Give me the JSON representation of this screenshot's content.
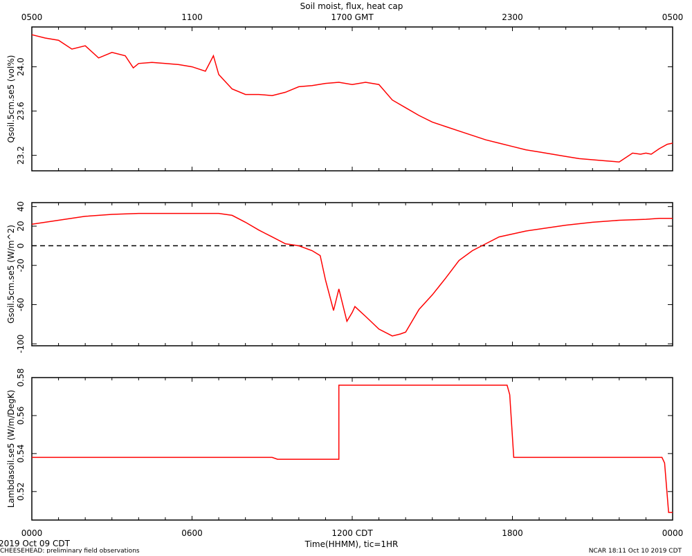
{
  "chart_data": {
    "title": "Soil moist, flux, heat cap",
    "top_axis_labels": [
      "0500",
      "1100",
      "1700 GMT",
      "2300",
      "0500"
    ],
    "bottom_axis_labels": [
      "0000",
      "0600",
      "1200 CDT",
      "1800",
      "0000"
    ],
    "xlabel": "Time(HHMM), tic=1HR",
    "date_label": "2019 Oct 09 CDT",
    "footer_left": "CHEESEHEAD: preliminary field observations",
    "footer_right": "NCAR 18:11 Oct 10 2019 CDT",
    "series_color": "#ff0000",
    "panels": [
      {
        "type": "line",
        "ylabel": "Qsoil.5cm.se5 (vol%)",
        "ylim": [
          23.06,
          24.36
        ],
        "yticks": [
          23.2,
          23.6,
          24.0
        ],
        "ytick_labels": [
          "23.2",
          "23.6",
          "24.0"
        ],
        "x": [
          0,
          0.5,
          1.0,
          1.5,
          2.0,
          2.5,
          3.0,
          3.5,
          3.8,
          4.0,
          4.5,
          5.0,
          5.5,
          6.0,
          6.5,
          6.8,
          7.0,
          7.5,
          8.0,
          8.5,
          9.0,
          9.5,
          10.0,
          10.5,
          11.0,
          11.5,
          12.0,
          12.5,
          13.0,
          13.5,
          14.0,
          14.5,
          15.0,
          15.5,
          16.0,
          16.5,
          17.0,
          17.5,
          18.0,
          18.5,
          19.0,
          19.5,
          20.0,
          20.5,
          21.0,
          21.5,
          22.0,
          22.5,
          22.8,
          23.0,
          23.2,
          23.5,
          23.8,
          24.0
        ],
        "y": [
          24.29,
          24.26,
          24.24,
          24.16,
          24.19,
          24.08,
          24.13,
          24.1,
          23.99,
          24.03,
          24.04,
          24.03,
          24.02,
          24.0,
          23.96,
          24.1,
          23.93,
          23.8,
          23.75,
          23.75,
          23.74,
          23.77,
          23.82,
          23.83,
          23.85,
          23.86,
          23.84,
          23.86,
          23.84,
          23.7,
          23.63,
          23.56,
          23.5,
          23.46,
          23.42,
          23.38,
          23.34,
          23.31,
          23.28,
          23.25,
          23.23,
          23.21,
          23.19,
          23.17,
          23.16,
          23.15,
          23.14,
          23.22,
          23.21,
          23.22,
          23.21,
          23.26,
          23.3,
          23.31
        ]
      },
      {
        "type": "line",
        "ylabel": "Gsoil.5cm.se5 (W/m^2)",
        "ylim": [
          -102,
          44
        ],
        "yticks": [
          -100,
          -60,
          -20,
          0,
          20,
          40
        ],
        "ytick_labels": [
          "-100",
          "-60",
          "-20",
          "0",
          "20",
          "40"
        ],
        "reference_line": 0,
        "x": [
          0,
          1,
          2,
          3,
          4,
          5,
          6,
          7,
          7.5,
          8,
          8.5,
          9,
          9.5,
          10,
          10.5,
          10.8,
          11,
          11.3,
          11.5,
          11.8,
          12.0,
          12.1,
          12.3,
          12.5,
          13,
          13.5,
          13.8,
          14,
          14.5,
          15,
          15.5,
          16,
          16.5,
          17,
          17.5,
          18,
          18.5,
          19,
          20,
          21,
          22,
          23,
          23.5,
          24
        ],
        "y": [
          22,
          26,
          30,
          32,
          33,
          33,
          33,
          33,
          31,
          24,
          16,
          9,
          2,
          0,
          -5,
          -10,
          -35,
          -66,
          -44,
          -77,
          -68,
          -62,
          -67,
          -72,
          -85,
          -92,
          -90,
          -88,
          -65,
          -50,
          -33,
          -15,
          -5,
          2,
          9,
          12,
          15,
          17,
          21,
          24,
          26,
          27,
          28,
          28
        ]
      },
      {
        "type": "line",
        "ylabel": "Lambdasoil.se5 (W/m/DegK)",
        "ylim": [
          0.505,
          0.58
        ],
        "yticks": [
          0.52,
          0.54,
          0.56,
          0.58
        ],
        "ytick_labels": [
          "0.52",
          "0.54",
          "0.56",
          "0.58"
        ],
        "x": [
          0,
          9.0,
          9.2,
          11.5,
          11.5,
          17.8,
          17.9,
          18.05,
          23.6,
          23.7,
          23.85,
          24
        ],
        "y": [
          0.538,
          0.538,
          0.537,
          0.537,
          0.576,
          0.576,
          0.571,
          0.538,
          0.538,
          0.535,
          0.509,
          0.509
        ]
      }
    ]
  }
}
